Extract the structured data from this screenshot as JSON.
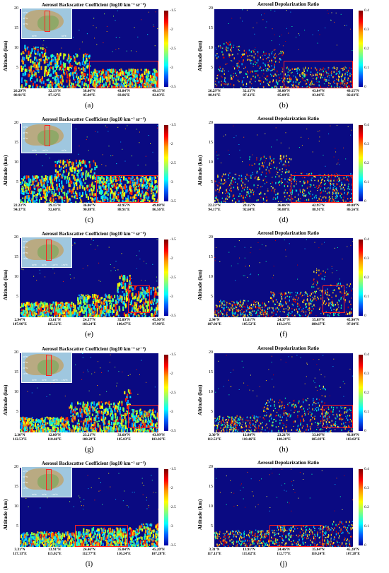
{
  "titles": {
    "backscatter": "Aerosol Backscatter Coefficient (log10 km⁻¹ sr⁻¹)",
    "depol": "Aerosol Depolarization Ratio"
  },
  "ylabel": "Altitude (km)",
  "yticks": [
    "20",
    "15",
    "10",
    "5"
  ],
  "colorbar_backscatter": [
    "-1.5",
    "-2",
    "-2.5",
    "-3",
    "-3.5"
  ],
  "colorbar_depol": [
    "0.4",
    "0.3",
    "0.2",
    "0.1",
    "0"
  ],
  "rows": [
    {
      "xticks": [
        [
          "26.29°N",
          "88.91°E"
        ],
        [
          "32.13°N",
          "87.12°E"
        ],
        [
          "38.00°N",
          "85.09°E"
        ],
        [
          "43.84°N",
          "83.86°E"
        ],
        [
          "49.15°N",
          "82.03°E"
        ]
      ],
      "left_caption": "(a)",
      "right_caption": "(b)",
      "map_labels": [
        "50°N",
        "40°N",
        "30°N",
        "60°E",
        "90°E"
      ]
    },
    {
      "xticks": [
        [
          "22.23°N",
          "94.17°E"
        ],
        [
          "29.15°N",
          "92.60°E"
        ],
        [
          "36.06°N",
          "90.88°E"
        ],
        [
          "42.95°N",
          "88.91°E"
        ],
        [
          "49.88°N",
          "86.56°E"
        ]
      ],
      "left_caption": "(c)",
      "right_caption": "(d)",
      "map_labels": [
        "50°N",
        "40°N",
        "30°N",
        "60°E",
        "90°E",
        "120°E"
      ]
    },
    {
      "xticks": [
        [
          "2.94°N",
          "107.96°E"
        ],
        [
          "13.61°N",
          "105.52°E"
        ],
        [
          "24.37°N",
          "103.24°E"
        ],
        [
          "35.09°N",
          "100.67°E"
        ],
        [
          "45.90°N",
          "97.90°E"
        ]
      ],
      "left_caption": "(e)",
      "right_caption": "(f)",
      "map_labels": [
        "40°N",
        "30°N",
        "20°N",
        "10°N",
        "60°E",
        "90°E",
        "120°E",
        "150°E"
      ]
    },
    {
      "xticks": [
        [
          "2.30°N",
          "112.53°E"
        ],
        [
          "12.80°N",
          "110.46°E"
        ],
        [
          "23.21°N",
          "108.28°E"
        ],
        [
          "33.60°N",
          "105.83°E"
        ],
        [
          "43.99°N",
          "103.02°E"
        ]
      ],
      "left_caption": "(g)",
      "right_caption": "(h)",
      "map_labels": [
        "40°N",
        "30°N",
        "20°N",
        "10°N",
        "60°E",
        "90°E",
        "120°E",
        "150°E"
      ]
    },
    {
      "xticks": [
        [
          "3.31°N",
          "117.13°E"
        ],
        [
          "13.91°N",
          "115.02°E"
        ],
        [
          "24.46°N",
          "112.77°E"
        ],
        [
          "35.04°N",
          "110.24°E"
        ],
        [
          "45.20°N",
          "107.28°E"
        ]
      ],
      "left_caption": "(i)",
      "right_caption": "(j)",
      "map_labels": [
        "40°N",
        "30°N",
        "20°N",
        "10°N",
        "60°E",
        "90°E",
        "120°E"
      ]
    }
  ]
}
